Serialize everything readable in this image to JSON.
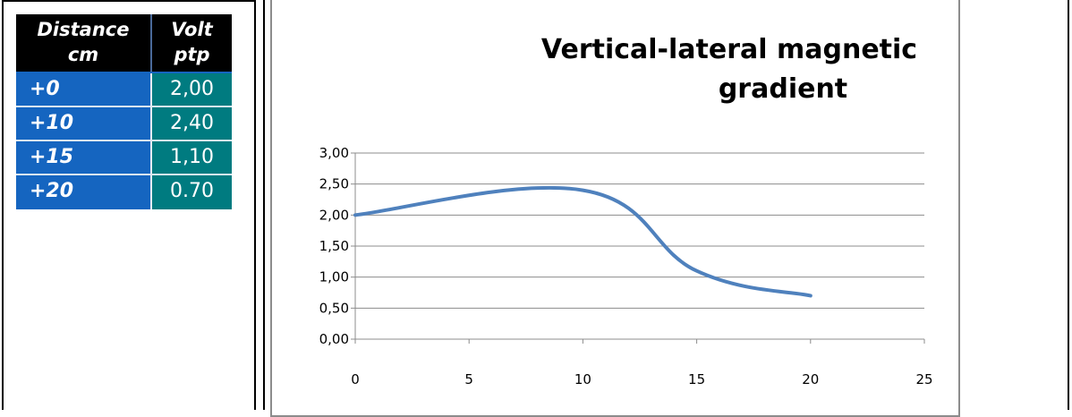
{
  "table": {
    "headers": [
      {
        "line1": "Distance",
        "line2": "cm"
      },
      {
        "line1": "Volt",
        "line2": "ptp"
      }
    ],
    "rows": [
      {
        "distance": "+0",
        "volt": "2,00"
      },
      {
        "distance": "+10",
        "volt": "2,40"
      },
      {
        "distance": "+15",
        "volt": "1,10"
      },
      {
        "distance": "+20",
        "volt": "0.70"
      }
    ]
  },
  "chart_data": {
    "type": "line",
    "title": "Vertical-lateral  magnetic gradient",
    "title_lines": [
      "Vertical-lateral  magnetic",
      "gradient"
    ],
    "xlabel": "",
    "ylabel": "",
    "x": [
      0,
      10,
      15,
      20
    ],
    "series": [
      {
        "values": [
          2.0,
          2.4,
          1.1,
          0.7
        ],
        "color": "#4f81bd"
      }
    ],
    "xlim": [
      0,
      25
    ],
    "ylim": [
      0,
      3
    ],
    "x_ticks": [
      "0",
      "5",
      "10",
      "15",
      "20",
      "25"
    ],
    "y_ticks": [
      "0,00",
      "0,50",
      "1,00",
      "1,50",
      "2,00",
      "2,50",
      "3,00"
    ],
    "grid": "horizontal",
    "legend": "none"
  },
  "colors": {
    "table_header_bg": "#000000",
    "distance_cell_bg": "#1565c0",
    "volt_cell_bg": "#007b80",
    "line": "#4f81bd"
  },
  "icons": [
    "arrow-down-icon"
  ]
}
